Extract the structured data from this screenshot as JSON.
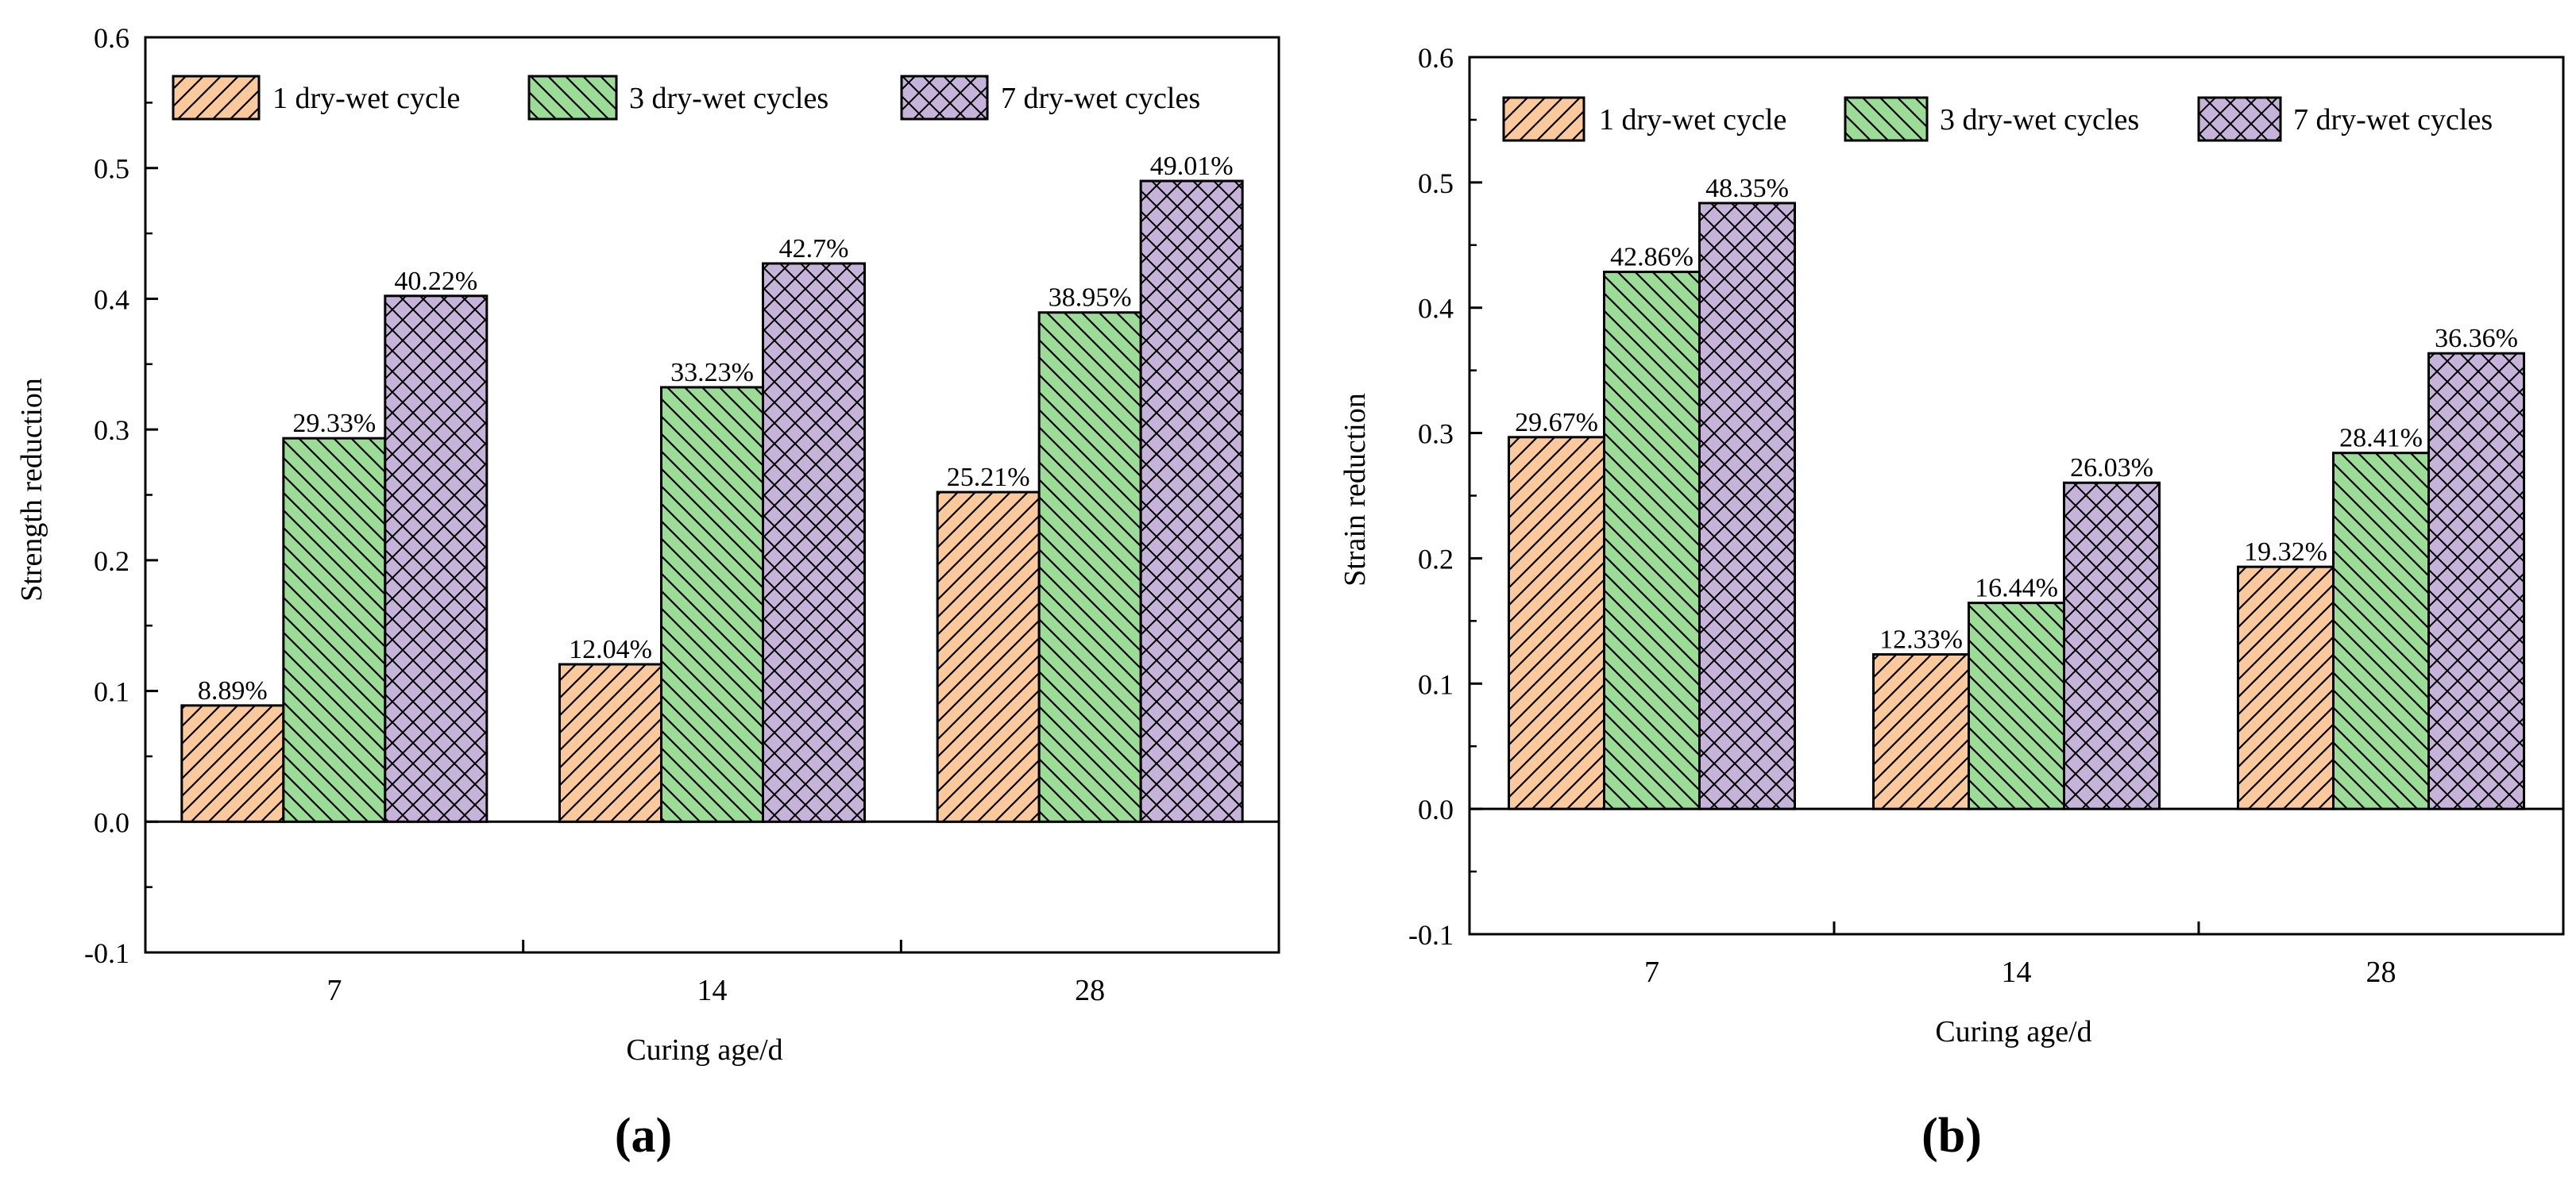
{
  "colors": {
    "s1_fill": "#fbc99c",
    "s2_fill": "#9bdc96",
    "s3_fill": "#c6b3d9",
    "ink": "#000000"
  },
  "chart_data": [
    {
      "type": "bar",
      "panel_label": "(a)",
      "xlabel": "Curing age/d",
      "ylabel": "Strength reduction",
      "categories": [
        "7",
        "14",
        "28"
      ],
      "ylim": [
        -0.1,
        0.6
      ],
      "yticks": [
        "-0.1",
        "0.0",
        "0.1",
        "0.2",
        "0.3",
        "0.4",
        "0.5",
        "0.6"
      ],
      "legend_position": "top",
      "series": [
        {
          "name": "1 dry-wet cycle",
          "values": [
            0.0889,
            0.1204,
            0.2521
          ],
          "labels": [
            "8.89%",
            "12.04%",
            "25.21%"
          ]
        },
        {
          "name": "3 dry-wet cycles",
          "values": [
            0.2933,
            0.3323,
            0.3895
          ],
          "labels": [
            "29.33%",
            "33.23%",
            "38.95%"
          ]
        },
        {
          "name": "7 dry-wet cycles",
          "values": [
            0.4022,
            0.427,
            0.4901
          ],
          "labels": [
            "40.22%",
            "42.7%",
            "49.01%"
          ]
        }
      ]
    },
    {
      "type": "bar",
      "panel_label": "(b)",
      "xlabel": "Curing age/d",
      "ylabel": "Strain reduction",
      "categories": [
        "7",
        "14",
        "28"
      ],
      "ylim": [
        -0.1,
        0.6
      ],
      "yticks": [
        "-0.1",
        "0.0",
        "0.1",
        "0.2",
        "0.3",
        "0.4",
        "0.5",
        "0.6"
      ],
      "legend_position": "top",
      "series": [
        {
          "name": "1 dry-wet cycle",
          "values": [
            0.2967,
            0.1233,
            0.1932
          ],
          "labels": [
            "29.67%",
            "12.33%",
            "19.32%"
          ]
        },
        {
          "name": "3 dry-wet cycles",
          "values": [
            0.4286,
            0.1644,
            0.2841
          ],
          "labels": [
            "42.86%",
            "16.44%",
            "28.41%"
          ]
        },
        {
          "name": "7 dry-wet cycles",
          "values": [
            0.4835,
            0.2603,
            0.3636
          ],
          "labels": [
            "48.35%",
            "26.03%",
            "36.36%"
          ]
        }
      ]
    }
  ]
}
